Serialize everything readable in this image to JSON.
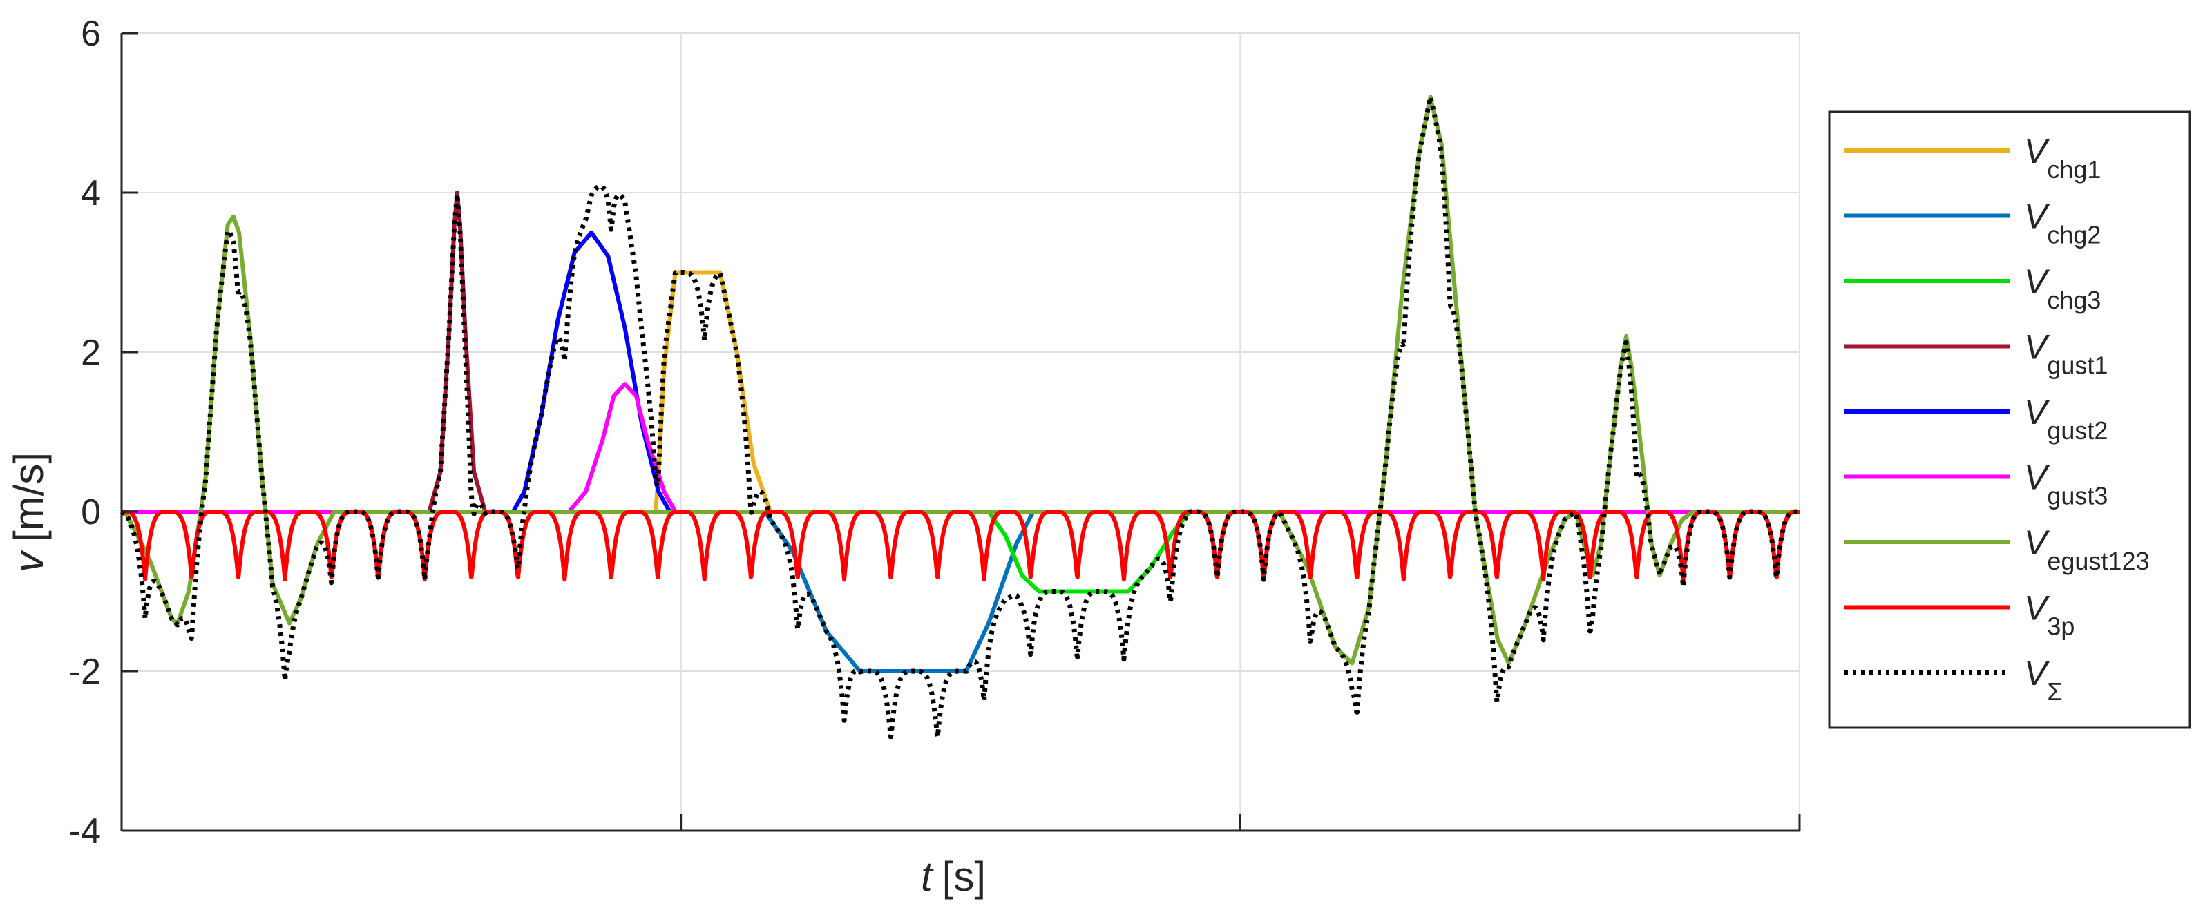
{
  "chart_data": {
    "type": "line",
    "xlabel_var": "t",
    "xlabel_unit": "[s]",
    "ylabel_var": "v",
    "ylabel_unit": "[m/s]",
    "xlim": [
      0,
      3
    ],
    "ylim": [
      -4,
      6
    ],
    "yticks": [
      -4,
      -2,
      0,
      2,
      4,
      6
    ],
    "ytick_labels": [
      "-4",
      "-2",
      "0",
      "2",
      "4",
      "6"
    ],
    "xticks": [
      0,
      1,
      2,
      3
    ],
    "xtick_labels": [
      "",
      "",
      "",
      ""
    ],
    "grid": true,
    "legend_position": "right",
    "series": [
      {
        "id": "chg1",
        "name_main": "V",
        "name_sub": "chg1",
        "color": "#EDB120",
        "style": "solid",
        "points": [
          [
            0,
            0
          ],
          [
            0.955,
            0
          ],
          [
            0.96,
            0.5
          ],
          [
            0.97,
            1.8
          ],
          [
            0.99,
            3.0
          ],
          [
            1.07,
            3.0
          ],
          [
            1.1,
            2.0
          ],
          [
            1.13,
            0.6
          ],
          [
            1.16,
            0
          ],
          [
            3,
            0
          ]
        ]
      },
      {
        "id": "chg2",
        "name_main": "V",
        "name_sub": "chg2",
        "color": "#0072BD",
        "style": "solid",
        "points": [
          [
            0,
            0
          ],
          [
            1.15,
            0
          ],
          [
            1.2,
            -0.5
          ],
          [
            1.26,
            -1.5
          ],
          [
            1.32,
            -2.0
          ],
          [
            1.51,
            -2.0
          ],
          [
            1.55,
            -1.4
          ],
          [
            1.6,
            -0.4
          ],
          [
            1.63,
            0
          ],
          [
            3,
            0
          ]
        ]
      },
      {
        "id": "chg3",
        "name_main": "V",
        "name_sub": "chg3",
        "color": "#00E000",
        "style": "solid",
        "points": [
          [
            0,
            0
          ],
          [
            1.55,
            0
          ],
          [
            1.58,
            -0.3
          ],
          [
            1.61,
            -0.8
          ],
          [
            1.64,
            -1.0
          ],
          [
            1.8,
            -1.0
          ],
          [
            1.84,
            -0.7
          ],
          [
            1.88,
            -0.25
          ],
          [
            1.91,
            0
          ],
          [
            3,
            0
          ]
        ]
      },
      {
        "id": "gust1",
        "name_main": "V",
        "name_sub": "gust1",
        "color": "#A2142F",
        "style": "solid",
        "points": [
          [
            0,
            0
          ],
          [
            0.55,
            0
          ],
          [
            0.57,
            0.5
          ],
          [
            0.585,
            2.2
          ],
          [
            0.595,
            3.6
          ],
          [
            0.6,
            4.0
          ],
          [
            0.605,
            3.6
          ],
          [
            0.615,
            2.2
          ],
          [
            0.63,
            0.5
          ],
          [
            0.65,
            0
          ],
          [
            3,
            0
          ]
        ]
      },
      {
        "id": "gust2",
        "name_main": "V",
        "name_sub": "gust2",
        "color": "#0000FF",
        "style": "solid",
        "points": [
          [
            0,
            0
          ],
          [
            0.7,
            0
          ],
          [
            0.72,
            0.25
          ],
          [
            0.75,
            1.2
          ],
          [
            0.78,
            2.4
          ],
          [
            0.81,
            3.25
          ],
          [
            0.84,
            3.5
          ],
          [
            0.87,
            3.2
          ],
          [
            0.9,
            2.3
          ],
          [
            0.93,
            1.1
          ],
          [
            0.96,
            0.25
          ],
          [
            0.98,
            0
          ],
          [
            3,
            0
          ]
        ]
      },
      {
        "id": "gust3",
        "name_main": "V",
        "name_sub": "gust3",
        "color": "#FF00FF",
        "style": "solid",
        "points": [
          [
            0,
            0
          ],
          [
            0.8,
            0
          ],
          [
            0.83,
            0.25
          ],
          [
            0.86,
            0.9
          ],
          [
            0.88,
            1.45
          ],
          [
            0.9,
            1.6
          ],
          [
            0.92,
            1.45
          ],
          [
            0.94,
            0.9
          ],
          [
            0.97,
            0.25
          ],
          [
            0.99,
            0
          ],
          [
            3,
            0
          ]
        ]
      },
      {
        "id": "egust123",
        "name_main": "V",
        "name_sub": "egust123",
        "color": "#77AC30",
        "style": "solid",
        "points": [
          [
            0,
            0
          ],
          [
            0.01,
            -0.05
          ],
          [
            0.05,
            -0.6
          ],
          [
            0.09,
            -1.35
          ],
          [
            0.1,
            -1.4
          ],
          [
            0.12,
            -1.0
          ],
          [
            0.15,
            0.4
          ],
          [
            0.17,
            2.3
          ],
          [
            0.19,
            3.6
          ],
          [
            0.2,
            3.7
          ],
          [
            0.21,
            3.5
          ],
          [
            0.23,
            2.2
          ],
          [
            0.25,
            0.5
          ],
          [
            0.27,
            -0.9
          ],
          [
            0.3,
            -1.4
          ],
          [
            0.32,
            -1.1
          ],
          [
            0.35,
            -0.4
          ],
          [
            0.38,
            0
          ],
          [
            2.07,
            0
          ],
          [
            2.12,
            -0.7
          ],
          [
            2.17,
            -1.7
          ],
          [
            2.2,
            -1.9
          ],
          [
            2.23,
            -1.2
          ],
          [
            2.26,
            0.6
          ],
          [
            2.29,
            2.8
          ],
          [
            2.32,
            4.5
          ],
          [
            2.34,
            5.2
          ],
          [
            2.36,
            4.6
          ],
          [
            2.39,
            2.3
          ],
          [
            2.42,
            0
          ],
          [
            2.46,
            -1.6
          ],
          [
            2.48,
            -1.9
          ],
          [
            2.51,
            -1.4
          ],
          [
            2.55,
            -0.6
          ],
          [
            2.58,
            -0.1
          ],
          [
            2.6,
            0
          ],
          [
            2.61,
            -0.3
          ],
          [
            2.63,
            -0.8
          ],
          [
            2.645,
            -0.4
          ],
          [
            2.66,
            0.6
          ],
          [
            2.68,
            1.8
          ],
          [
            2.69,
            2.2
          ],
          [
            2.7,
            1.8
          ],
          [
            2.72,
            0.6
          ],
          [
            2.735,
            -0.4
          ],
          [
            2.75,
            -0.8
          ],
          [
            2.77,
            -0.4
          ],
          [
            2.79,
            -0.1
          ],
          [
            2.81,
            0
          ],
          [
            3,
            0
          ]
        ]
      },
      {
        "id": "3p",
        "name_main": "V",
        "name_sub": "3p",
        "color": "#FF0000",
        "style": "solid",
        "period": 0.0833333,
        "phase": 0.042,
        "depth": 0.85,
        "points": []
      },
      {
        "id": "sum",
        "name_main": "V",
        "name_sub": "Σ",
        "color": "#000000",
        "style": "dotted",
        "points": []
      }
    ]
  }
}
